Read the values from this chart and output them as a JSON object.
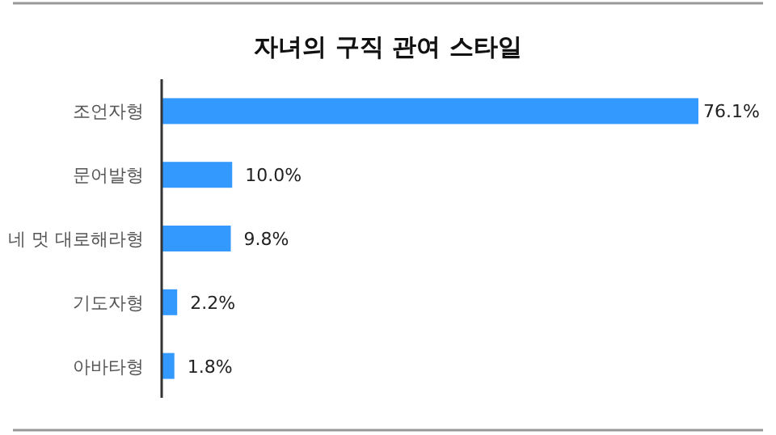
{
  "chart_data": {
    "type": "bar",
    "orientation": "horizontal",
    "title": "자녀의 구직 관여 스타일",
    "categories": [
      "조언자형",
      "문어발형",
      "네 멋 대로해라형",
      "기도자형",
      "아바타형"
    ],
    "values": [
      76.1,
      10.0,
      9.8,
      2.2,
      1.8
    ],
    "value_labels": [
      "76.1%",
      "10.0%",
      "9.8%",
      "2.2%",
      "1.8%"
    ],
    "color": "#3399ff"
  }
}
